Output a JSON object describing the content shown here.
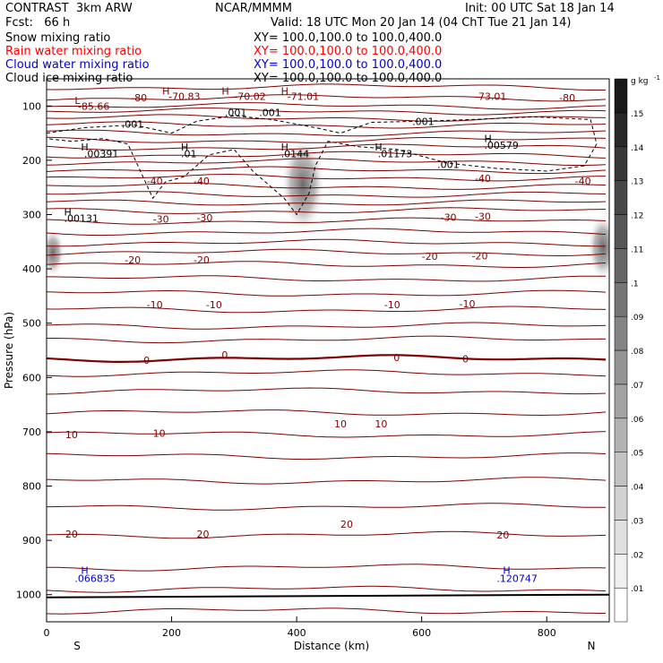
{
  "header": {
    "title": "CONTRAST  3km ARW",
    "center": "NCAR/MMMM",
    "init": "Init: 00 UTC Sat 18 Jan 14",
    "fcst": "Fcst:   66 h",
    "valid": "Valid: 18 UTC Mon 20 Jan 14 (04 ChT Tue 21 Jan 14)"
  },
  "fields": [
    {
      "label": "Snow mixing ratio",
      "xy": "XY= 100.0,100.0 to 100.0,400.0",
      "color": "#000000"
    },
    {
      "label": "Rain water mixing ratio",
      "xy": "XY= 100.0,100.0 to 100.0,400.0",
      "color": "#ff0000"
    },
    {
      "label": "Cloud water mixing ratio",
      "xy": "XY= 100.0,100.0 to 100.0,400.0",
      "color": "#0000cc"
    },
    {
      "label": "Cloud ice mixing ratio",
      "xy": "XY= 100.0,100.0 to 100.0,400.0",
      "color": "#000000"
    }
  ],
  "colors": {
    "temp_contour": "#800000",
    "cloud_water": "#0000cc",
    "frame": "#000000"
  },
  "chart_data": {
    "type": "cross-section",
    "xlabel": "Distance (km)",
    "ylabel": "Pressure (hPa)",
    "xlim": [
      0,
      900
    ],
    "ylim": [
      1050,
      50
    ],
    "x_ticks": [
      0,
      200,
      400,
      600,
      800
    ],
    "y_ticks": [
      100,
      200,
      300,
      400,
      500,
      600,
      700,
      800,
      900,
      1000
    ],
    "end_labels": {
      "left": "S",
      "right": "N"
    },
    "colorbar": {
      "unit": "g kg",
      "unit_exp": "-1",
      "ticks": [
        ".01",
        ".02",
        ".03",
        ".04",
        ".05",
        ".06",
        ".07",
        ".08",
        ".09",
        ".1",
        ".11",
        ".12",
        ".13",
        ".14",
        ".15"
      ]
    },
    "temperature_contour_levels": [
      65,
      85,
      100,
      110,
      122,
      135,
      150,
      163,
      176,
      190,
      203,
      218,
      232,
      248,
      263,
      278,
      293,
      312,
      332,
      352,
      370,
      392,
      418,
      445,
      475,
      505,
      530,
      565,
      592,
      625,
      665,
      705,
      745,
      790,
      838,
      890,
      950,
      990,
      1030
    ],
    "bold_contour_level": 565,
    "temperature_labels": [
      {
        "text": "L",
        "x": 45,
        "p": 90
      },
      {
        "text": "-80",
        "x": 135,
        "p": 85
      },
      {
        "text": "-85.66",
        "x": 50,
        "p": 100
      },
      {
        "text": "H",
        "x": 185,
        "p": 72
      },
      {
        "text": "-70.83",
        "x": 195,
        "p": 82
      },
      {
        "text": "H",
        "x": 280,
        "p": 72
      },
      {
        "text": "-70.02",
        "x": 300,
        "p": 82
      },
      {
        "text": "H",
        "x": 375,
        "p": 72
      },
      {
        "text": "-71.01",
        "x": 385,
        "p": 82
      },
      {
        "text": "-73.01",
        "x": 685,
        "p": 82
      },
      {
        "text": "-80",
        "x": 820,
        "p": 85
      },
      {
        "text": "-40",
        "x": 160,
        "p": 238
      },
      {
        "text": "-40",
        "x": 235,
        "p": 238
      },
      {
        "text": "-40",
        "x": 685,
        "p": 233
      },
      {
        "text": "-40",
        "x": 845,
        "p": 238
      },
      {
        "text": "-30",
        "x": 170,
        "p": 308
      },
      {
        "text": "-30",
        "x": 240,
        "p": 306
      },
      {
        "text": "-30",
        "x": 630,
        "p": 305
      },
      {
        "text": "-30",
        "x": 685,
        "p": 303
      },
      {
        "text": "-20",
        "x": 125,
        "p": 383
      },
      {
        "text": "-20",
        "x": 235,
        "p": 383
      },
      {
        "text": "-20",
        "x": 600,
        "p": 377
      },
      {
        "text": "-20",
        "x": 680,
        "p": 376
      },
      {
        "text": "-10",
        "x": 160,
        "p": 466
      },
      {
        "text": "-10",
        "x": 255,
        "p": 466
      },
      {
        "text": "-10",
        "x": 540,
        "p": 466
      },
      {
        "text": "-10",
        "x": 660,
        "p": 464
      },
      {
        "text": "0",
        "x": 155,
        "p": 568
      },
      {
        "text": "0",
        "x": 280,
        "p": 558
      },
      {
        "text": "0",
        "x": 555,
        "p": 563
      },
      {
        "text": "0",
        "x": 665,
        "p": 566
      },
      {
        "text": "10",
        "x": 30,
        "p": 705
      },
      {
        "text": "10",
        "x": 170,
        "p": 703
      },
      {
        "text": "10",
        "x": 460,
        "p": 685
      },
      {
        "text": "10",
        "x": 525,
        "p": 685
      },
      {
        "text": "20",
        "x": 30,
        "p": 888
      },
      {
        "text": "20",
        "x": 240,
        "p": 888
      },
      {
        "text": "20",
        "x": 470,
        "p": 870
      },
      {
        "text": "20",
        "x": 720,
        "p": 890
      }
    ],
    "cloud_ice_labels": [
      {
        "text": ".001",
        "x": 120,
        "p": 133
      },
      {
        "text": ".001",
        "x": 285,
        "p": 112
      },
      {
        "text": ".001",
        "x": 340,
        "p": 112
      },
      {
        "text": ".001",
        "x": 585,
        "p": 128
      },
      {
        "text": ".001",
        "x": 625,
        "p": 208
      },
      {
        "text": "H",
        "x": 55,
        "p": 175
      },
      {
        "text": ".00391",
        "x": 60,
        "p": 188
      },
      {
        "text": "H",
        "x": 215,
        "p": 175
      },
      {
        "text": ".01",
        "x": 215,
        "p": 188
      },
      {
        "text": "H",
        "x": 375,
        "p": 175
      },
      {
        "text": ".0144",
        "x": 375,
        "p": 188
      },
      {
        "text": "H",
        "x": 525,
        "p": 175
      },
      {
        "text": ".01173",
        "x": 530,
        "p": 188
      },
      {
        "text": "H",
        "x": 700,
        "p": 160
      },
      {
        "text": ".00579",
        "x": 700,
        "p": 172
      },
      {
        "text": "H",
        "x": 28,
        "p": 295
      },
      {
        "text": ".00131",
        "x": 28,
        "p": 307
      }
    ],
    "cloud_water_labels": [
      {
        "text": "H",
        "x": 55,
        "p": 955
      },
      {
        "text": ".066835",
        "x": 45,
        "p": 970
      },
      {
        "text": "H",
        "x": 730,
        "p": 955
      },
      {
        "text": ".120747",
        "x": 720,
        "p": 970
      }
    ],
    "shading_blobs": [
      {
        "x": 410,
        "p": 245,
        "value": 0.1
      },
      {
        "x": 890,
        "p": 360,
        "value": 0.05
      },
      {
        "x": 10,
        "p": 370,
        "value": 0.02
      }
    ]
  }
}
